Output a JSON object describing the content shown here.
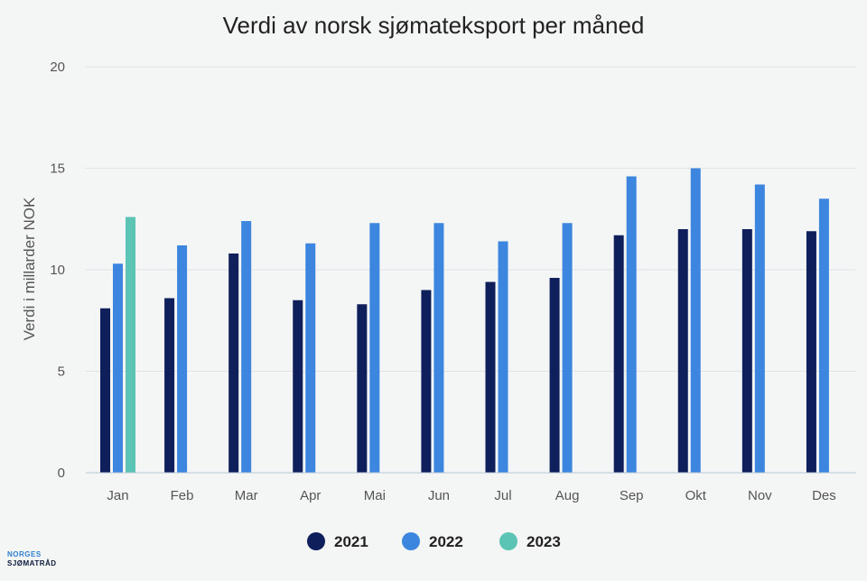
{
  "chart_data": {
    "type": "bar",
    "title": "Verdi av norsk sjømateksport per måned",
    "ylabel": "Verdi i millarder NOK",
    "xlabel": "",
    "ylim": [
      0,
      20
    ],
    "yticks": [
      0,
      5,
      10,
      15,
      20
    ],
    "grid": true,
    "legend_position": "bottom",
    "categories": [
      "Jan",
      "Feb",
      "Mar",
      "Apr",
      "Mai",
      "Jun",
      "Jul",
      "Aug",
      "Sep",
      "Okt",
      "Nov",
      "Des"
    ],
    "series": [
      {
        "name": "2021",
        "color": "#0e1f5b",
        "values": [
          8.1,
          8.6,
          10.8,
          8.5,
          8.3,
          9.0,
          9.4,
          9.6,
          11.7,
          12.0,
          12.0,
          11.9
        ]
      },
      {
        "name": "2022",
        "color": "#3d86e0",
        "values": [
          10.3,
          11.2,
          12.4,
          11.3,
          12.3,
          12.3,
          11.4,
          12.3,
          14.6,
          15.0,
          14.2,
          13.5
        ]
      },
      {
        "name": "2023",
        "color": "#5cc4b4",
        "values": [
          12.6,
          null,
          null,
          null,
          null,
          null,
          null,
          null,
          null,
          null,
          null,
          null
        ]
      }
    ]
  },
  "logo": {
    "line1": "NORGES",
    "line2": "SJØMATRÅD"
  }
}
